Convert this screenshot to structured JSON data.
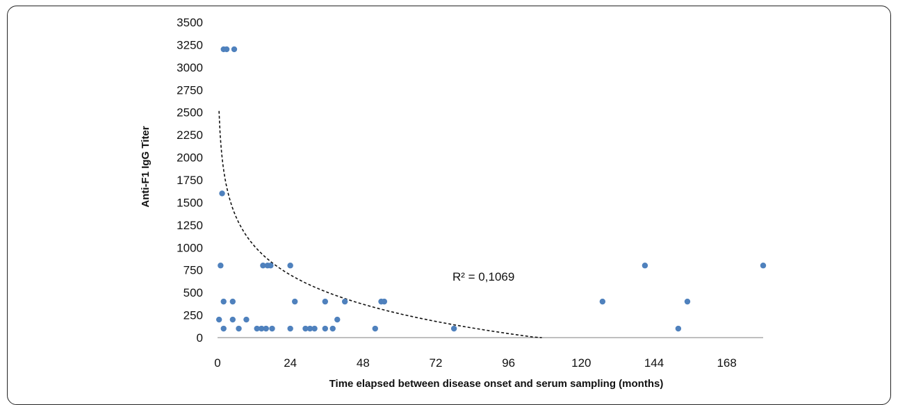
{
  "chart_data": {
    "type": "scatter",
    "xlabel": "Time elapsed between disease onset and serum sampling (months)",
    "ylabel": "Anti-F1 IgG Titer",
    "xlim": [
      0,
      180
    ],
    "ylim": [
      0,
      3500
    ],
    "xticks": [
      0,
      24,
      48,
      72,
      96,
      120,
      144,
      168
    ],
    "yticks": [
      0,
      250,
      500,
      750,
      1000,
      1250,
      1500,
      1750,
      2000,
      2250,
      2500,
      2750,
      3000,
      3250,
      3500
    ],
    "grid": false,
    "annotation": "R² = 0,1069",
    "marker_color": "#4f81bd",
    "trendline": {
      "type": "logarithmic",
      "style": "dashed",
      "color": "#000000",
      "x_range": [
        0.5,
        107
      ]
    },
    "points": [
      {
        "x": 0.5,
        "y": 200
      },
      {
        "x": 1,
        "y": 800
      },
      {
        "x": 1.5,
        "y": 1600
      },
      {
        "x": 2,
        "y": 100
      },
      {
        "x": 2,
        "y": 400
      },
      {
        "x": 2,
        "y": 3200
      },
      {
        "x": 3,
        "y": 3200
      },
      {
        "x": 5,
        "y": 200
      },
      {
        "x": 5,
        "y": 400
      },
      {
        "x": 5.5,
        "y": 3200
      },
      {
        "x": 7,
        "y": 100
      },
      {
        "x": 9.5,
        "y": 200
      },
      {
        "x": 13,
        "y": 100
      },
      {
        "x": 14.5,
        "y": 100
      },
      {
        "x": 15,
        "y": 800
      },
      {
        "x": 16,
        "y": 100
      },
      {
        "x": 16.5,
        "y": 800
      },
      {
        "x": 17.5,
        "y": 800
      },
      {
        "x": 18,
        "y": 100
      },
      {
        "x": 24,
        "y": 100
      },
      {
        "x": 24,
        "y": 800
      },
      {
        "x": 25.5,
        "y": 400
      },
      {
        "x": 29,
        "y": 100
      },
      {
        "x": 30.5,
        "y": 100
      },
      {
        "x": 32,
        "y": 100
      },
      {
        "x": 35.5,
        "y": 100
      },
      {
        "x": 35.5,
        "y": 400
      },
      {
        "x": 38,
        "y": 100
      },
      {
        "x": 39.5,
        "y": 200
      },
      {
        "x": 42,
        "y": 400
      },
      {
        "x": 52,
        "y": 100
      },
      {
        "x": 54,
        "y": 400
      },
      {
        "x": 55,
        "y": 400
      },
      {
        "x": 78,
        "y": 100
      },
      {
        "x": 127,
        "y": 400
      },
      {
        "x": 141,
        "y": 800
      },
      {
        "x": 152,
        "y": 100
      },
      {
        "x": 155,
        "y": 400
      },
      {
        "x": 180,
        "y": 800
      }
    ]
  }
}
